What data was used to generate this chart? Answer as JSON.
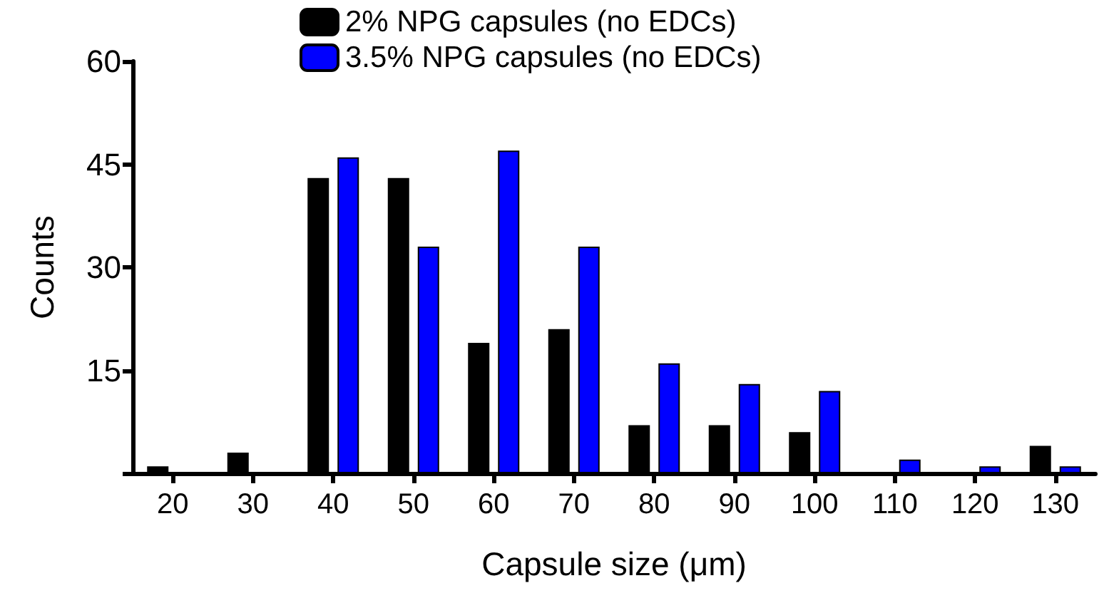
{
  "chart_data": {
    "type": "bar",
    "xlabel": "Capsule size (μm)",
    "ylabel": "Counts",
    "categories": [
      "20",
      "30",
      "40",
      "50",
      "60",
      "70",
      "80",
      "90",
      "100",
      "110",
      "120",
      "130"
    ],
    "series": [
      {
        "name": "2% NPG capsules (no EDCs)",
        "color": "#000000",
        "values": [
          1,
          3,
          43,
          43,
          19,
          21,
          7,
          7,
          6,
          0,
          0,
          4
        ]
      },
      {
        "name": "3.5% NPG capsules (no EDCs)",
        "color": "#0000ff",
        "values": [
          0,
          0,
          46,
          33,
          47,
          33,
          16,
          13,
          12,
          2,
          1,
          1
        ]
      }
    ],
    "ylim": [
      0,
      60
    ],
    "yticks": [
      {
        "value": 0,
        "label": null
      },
      15,
      30,
      45,
      60
    ],
    "grid": false,
    "legend": "top"
  }
}
